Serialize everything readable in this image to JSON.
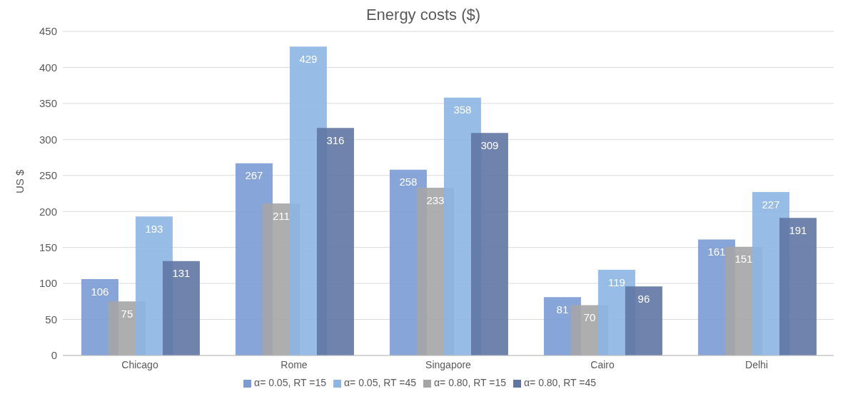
{
  "chart_data": {
    "type": "bar",
    "title": "Energy costs ($)",
    "ylabel": "US $",
    "categories": [
      "Chicago",
      "Rome",
      "Singapore",
      "Cairo",
      "Delhi"
    ],
    "series": [
      {
        "name": "α= 0.05, RT =15",
        "color": "#7b9bd6",
        "values": [
          106,
          267,
          258,
          81,
          161
        ]
      },
      {
        "name": "α= 0.80, RT =15",
        "color": "#a5a5a5",
        "values": [
          75,
          211,
          233,
          70,
          151
        ]
      },
      {
        "name": "α= 0.05, RT =45",
        "color": "#8cb6e3",
        "values": [
          193,
          429,
          358,
          119,
          227
        ]
      },
      {
        "name": "α= 0.80, RT =45",
        "color": "#5f76a3",
        "values": [
          131,
          316,
          309,
          96,
          191
        ]
      }
    ],
    "ylim": [
      0,
      450
    ],
    "yticks": [
      0,
      50,
      100,
      150,
      200,
      250,
      300,
      350,
      400,
      450
    ],
    "grid": "y",
    "legend": "bottom",
    "data_labels": true
  }
}
